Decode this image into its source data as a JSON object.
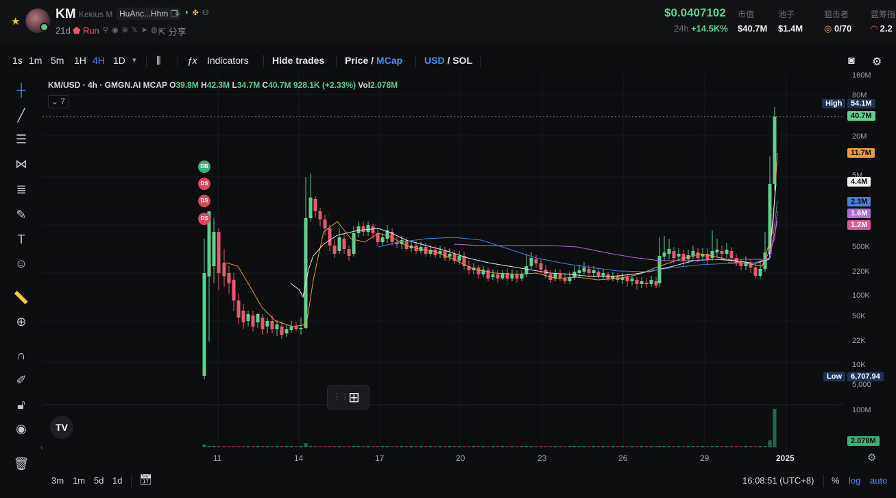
{
  "header": {
    "ticker": "KM",
    "name": "Kekius M",
    "address": "HuAnc...Hhm",
    "age": "21d",
    "tag": "Run",
    "share": "分享",
    "price": "$0.0407102",
    "change_label": "24h",
    "change_value": "+14.5K%",
    "stats": [
      {
        "label": "市值",
        "value": "$40.7M"
      },
      {
        "label": "池子",
        "value": "$1.4M"
      },
      {
        "label": "狙击者",
        "value": "0/70"
      },
      {
        "label": "蓝筹指",
        "value": "2.2"
      }
    ]
  },
  "toolbar": {
    "intervals": [
      "1s",
      "1m",
      "5m",
      "1H",
      "4H",
      "1D"
    ],
    "active_interval": "4H",
    "indicators": "Indicators",
    "hide_trades": "Hide trades",
    "price": "Price",
    "mcap": "MCap",
    "usd": "USD",
    "sol": "SOL"
  },
  "legend": {
    "symbol": "KM/USD · 4h · GMGN.AI MCAP",
    "o": "39.8M",
    "h": "42.3M",
    "l": "34.7M",
    "c": "40.7M",
    "change": "928.1K (+2.33%)",
    "vol": "2.078M",
    "collapsed_count": "7"
  },
  "markers": [
    "DB",
    "DS",
    "DS",
    "DS"
  ],
  "y_axis_labels": [
    "160M",
    "80M",
    "20M",
    "10M",
    "5M",
    "500K",
    "220K",
    "100K",
    "50K",
    "22K",
    "10K",
    "5,000",
    "100M"
  ],
  "price_tags": {
    "high_label": "High",
    "high": "54.1M",
    "current": "40.7M",
    "ma1": "11.7M",
    "ma2": "4.4M",
    "ma3": "2.3M",
    "ma4": "1.6M",
    "ma5": "1.2M",
    "low_label": "Low",
    "low": "6,707.94",
    "volume": "2.078M"
  },
  "x_axis_labels": [
    "11",
    "14",
    "17",
    "20",
    "23",
    "26",
    "29",
    "2025"
  ],
  "bottom": {
    "ranges": [
      "3m",
      "1m",
      "5d",
      "1d"
    ],
    "time": "16:08:51 (UTC+8)",
    "percent": "%",
    "log": "log",
    "auto": "auto"
  },
  "colors": {
    "up": "#5fcf8f",
    "down": "#e8596f",
    "accent": "#4a8cf5"
  },
  "chart_data": {
    "type": "candlestick",
    "x": [
      "11",
      "14",
      "17",
      "20",
      "23",
      "26",
      "29",
      "2025"
    ],
    "ohlc_last": {
      "o": "39.8M",
      "h": "42.3M",
      "l": "34.7M",
      "c": "40.7M"
    },
    "high": "54.1M",
    "low": "6,707.94",
    "y_scale": "log"
  }
}
